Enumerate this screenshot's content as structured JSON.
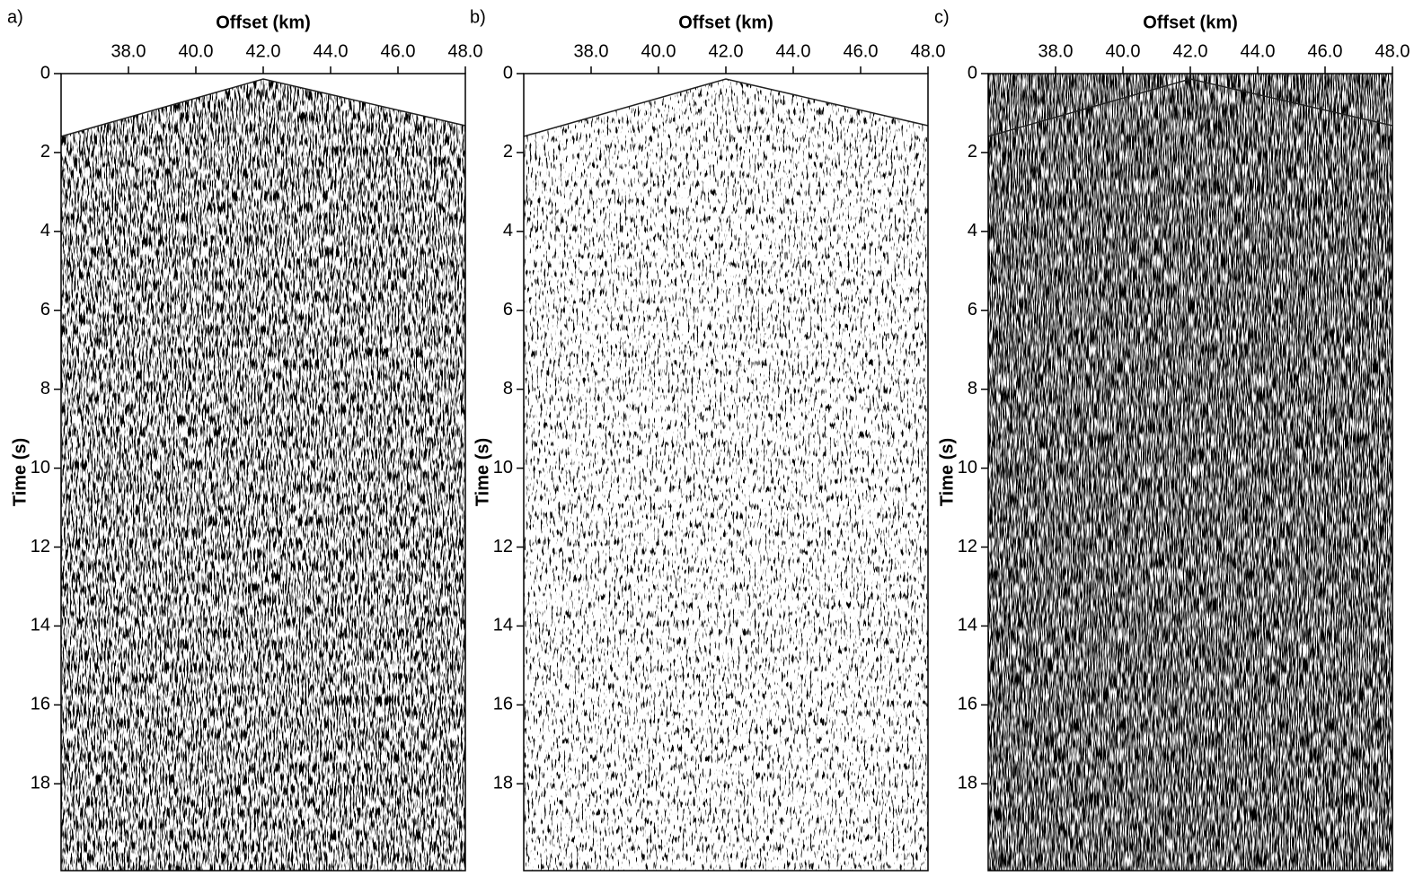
{
  "chart_data": [
    {
      "type": "seismic",
      "panel_label": "a)",
      "xlabel": "Offset (km)",
      "ylabel": "Time (s)",
      "xlim": [
        36,
        48
      ],
      "ylim": [
        0,
        20.2
      ],
      "xticks": [
        {
          "value": 38,
          "label": "38.0"
        },
        {
          "value": 40,
          "label": "40.0"
        },
        {
          "value": 42,
          "label": "42.0"
        },
        {
          "value": 44,
          "label": "44.0"
        },
        {
          "value": 46,
          "label": "46.0"
        },
        {
          "value": 48,
          "label": "48.0"
        }
      ],
      "yticks": [
        0,
        2,
        4,
        6,
        8,
        10,
        12,
        14,
        16,
        18
      ]
    },
    {
      "type": "seismic",
      "panel_label": "b)",
      "xlabel": "Offset (km)",
      "ylabel": "Time (s)",
      "xlim": [
        36,
        48
      ],
      "ylim": [
        0,
        20.2
      ],
      "xticks": [
        {
          "value": 38,
          "label": "38.0"
        },
        {
          "value": 40,
          "label": "40.0"
        },
        {
          "value": 42,
          "label": "42.0"
        },
        {
          "value": 44,
          "label": "44.0"
        },
        {
          "value": 46,
          "label": "46.0"
        },
        {
          "value": 48,
          "label": "48.0"
        }
      ],
      "yticks": [
        0,
        2,
        4,
        6,
        8,
        10,
        12,
        14,
        16,
        18
      ]
    },
    {
      "type": "seismic",
      "panel_label": "c)",
      "xlabel": "Offset (km)",
      "ylabel": "Time (s)",
      "xlim": [
        36,
        48
      ],
      "ylim": [
        0,
        20.2
      ],
      "xticks": [
        {
          "value": 38,
          "label": "38.0"
        },
        {
          "value": 40,
          "label": "40.0"
        },
        {
          "value": 42,
          "label": "42.0"
        },
        {
          "value": 44,
          "label": "44.0"
        },
        {
          "value": 46,
          "label": "46.0"
        },
        {
          "value": 48,
          "label": "48.0"
        }
      ],
      "yticks": [
        0,
        2,
        4,
        6,
        8,
        10,
        12,
        14,
        16,
        18
      ]
    }
  ]
}
